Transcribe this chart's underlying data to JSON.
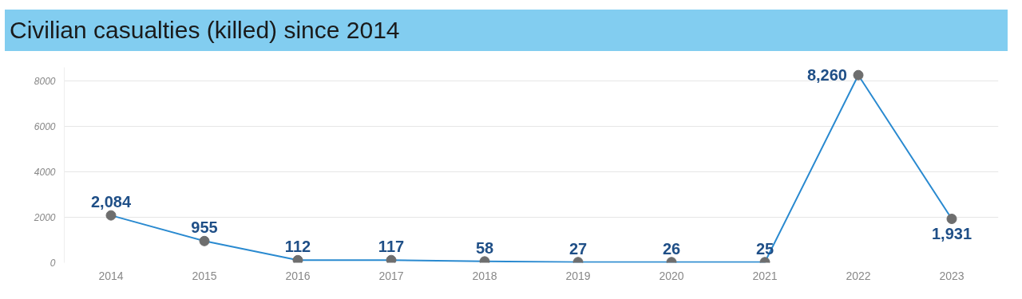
{
  "chart_data": {
    "type": "line",
    "title": "Civilian casualties (killed) since 2014",
    "categories": [
      "2014",
      "2015",
      "2016",
      "2017",
      "2018",
      "2019",
      "2020",
      "2021",
      "2022",
      "2023"
    ],
    "series": [
      {
        "color": "#2a8ad0",
        "colors": [
          "#6e6e6e",
          "#6e6e6e",
          "#6e6e6e",
          "#6e6e6e",
          "#6e6e6e",
          "#6e6e6e",
          "#6e6e6e",
          "#6e6e6e",
          "#6e6e6e",
          "#6e6e6e"
        ],
        "values": [
          2084,
          955,
          112,
          117,
          58,
          27,
          26,
          25,
          8260,
          1931
        ],
        "value_labels": [
          "2,084",
          "955",
          "112",
          "117",
          "58",
          "27",
          "26",
          "25",
          "8,260",
          "1,931"
        ]
      }
    ],
    "ylim": [
      0,
      8600
    ],
    "yticks": [
      0,
      2000,
      4000,
      6000,
      8000
    ],
    "grid": "y",
    "marker": "circle",
    "line_style": "solid"
  }
}
